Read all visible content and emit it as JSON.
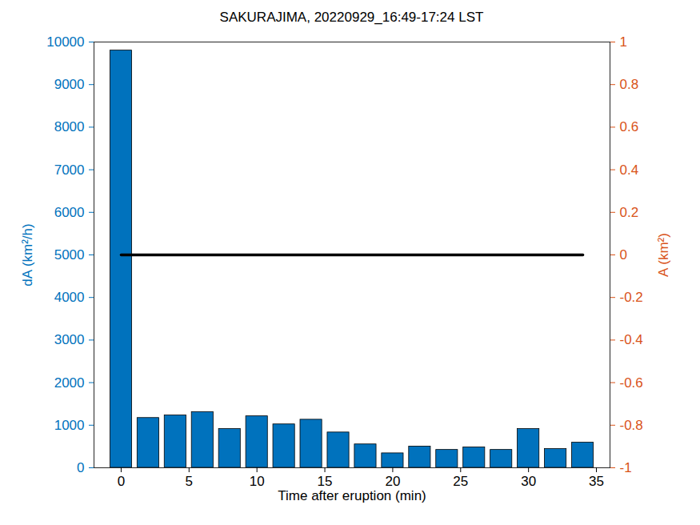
{
  "chart_data": {
    "type": "bar",
    "title": "SAKURAJIMA, 20220929_16:49-17:24 LST",
    "x_label": "Time after eruption (min)",
    "y_label": "dA (km²/h)",
    "y2_label": "A (km²)",
    "xlim": [
      -2,
      36
    ],
    "xticks": [
      0,
      5,
      10,
      15,
      20,
      25,
      30,
      35
    ],
    "ylim": [
      0,
      10000
    ],
    "yticks": [
      0,
      1000,
      2000,
      3000,
      4000,
      5000,
      6000,
      7000,
      8000,
      9000,
      10000
    ],
    "y2lim": [
      -1,
      1
    ],
    "y2ticks": [
      -1,
      -0.8,
      -0.6,
      -0.4,
      -0.2,
      0,
      0.2,
      0.4,
      0.6,
      0.8,
      1
    ],
    "grid": false,
    "x": [
      0,
      2,
      4,
      6,
      8,
      10,
      12,
      14,
      16,
      18,
      20,
      22,
      24,
      26,
      28,
      30,
      32,
      34
    ],
    "series": [
      {
        "name": "dA",
        "type": "bar",
        "color": "#0072bd",
        "values": [
          9800,
          1170,
          1230,
          1310,
          910,
          1210,
          1020,
          1130,
          830,
          550,
          340,
          500,
          420,
          480,
          420,
          910,
          440,
          590
        ]
      },
      {
        "name": "A",
        "type": "line",
        "axis": "y2",
        "color": "#000000",
        "values": [
          0,
          0,
          0,
          0,
          0,
          0,
          0,
          0,
          0,
          0,
          0,
          0,
          0,
          0,
          0,
          0,
          0,
          0
        ]
      }
    ]
  }
}
